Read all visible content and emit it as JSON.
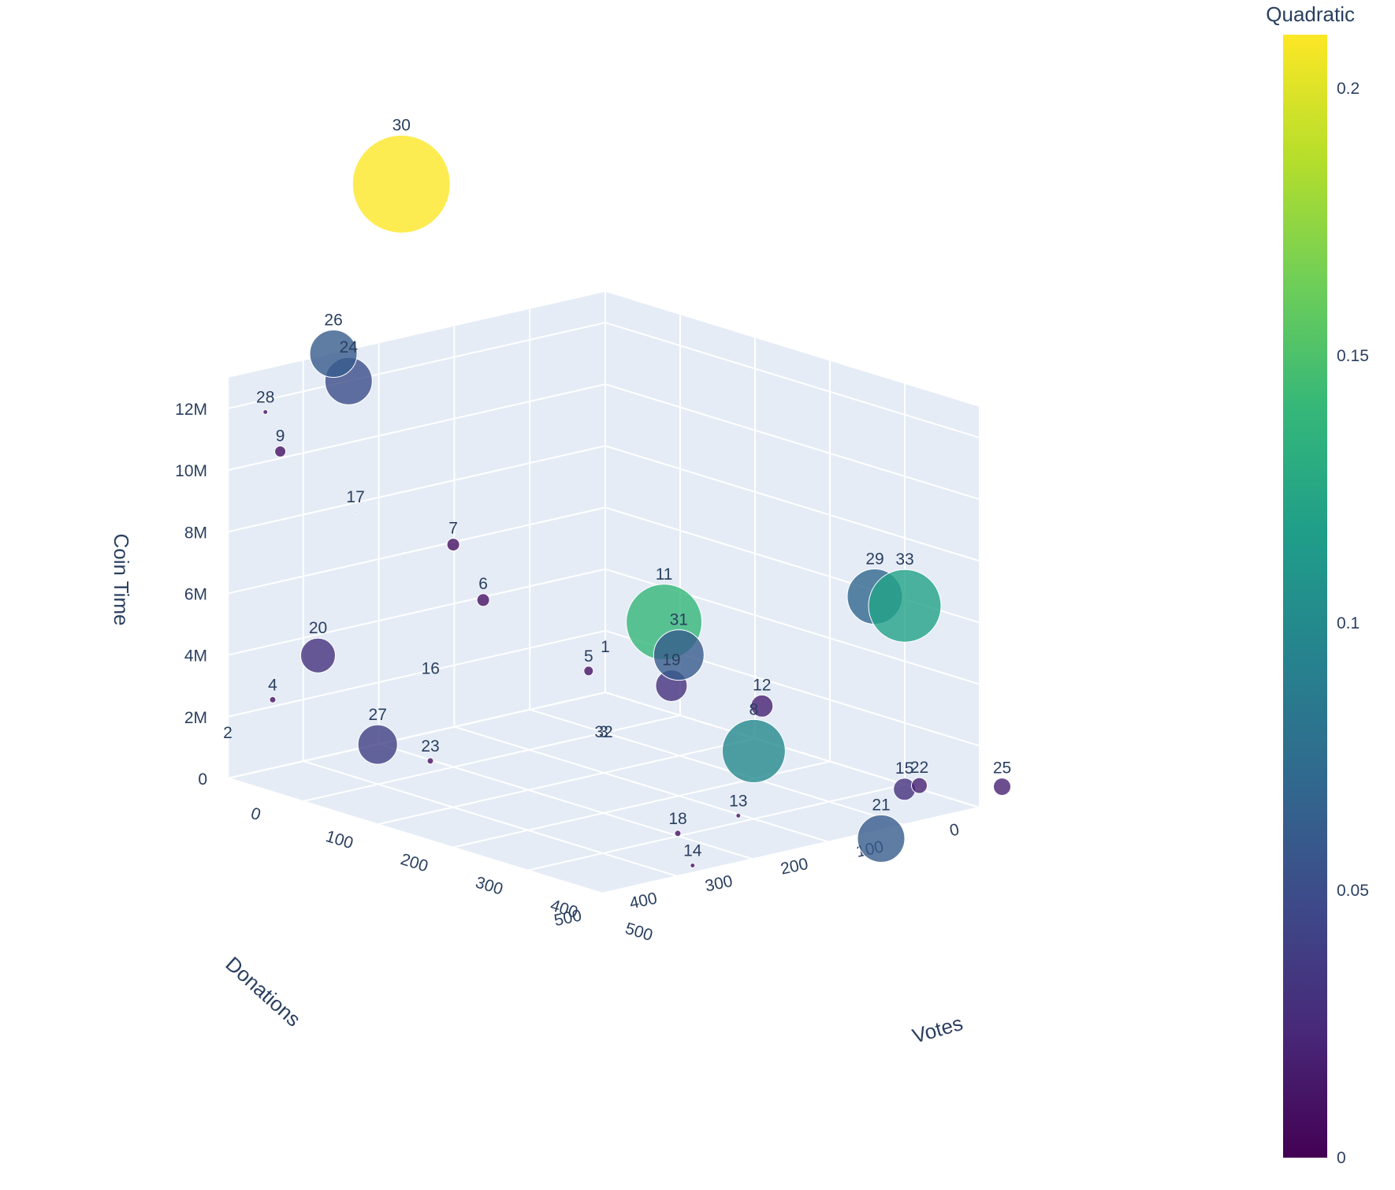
{
  "chart_data": {
    "type": "scatter3d",
    "axes": {
      "x": {
        "title": "Votes",
        "range": [
          0,
          500
        ],
        "ticks": [
          "0",
          "100",
          "200",
          "300",
          "400",
          "500"
        ]
      },
      "y": {
        "title": "Donations",
        "range": [
          0,
          500
        ],
        "ticks": [
          "0",
          "100",
          "200",
          "300",
          "400",
          "500"
        ]
      },
      "z": {
        "title": "Coin Time",
        "range": [
          0,
          13000000
        ],
        "ticks": [
          "0",
          "2M",
          "4M",
          "6M",
          "8M",
          "10M",
          "12M"
        ]
      }
    },
    "colorbar": {
      "title": "Quadratic",
      "colorscale": "Viridis",
      "range": [
        0,
        0.21
      ],
      "ticks": [
        "0",
        "0.05",
        "0.1",
        "0.15",
        "0.2"
      ],
      "colors": [
        "#440154",
        "#482878",
        "#3e4989",
        "#31688e",
        "#26828e",
        "#1f9e89",
        "#35b779",
        "#6ece58",
        "#b5de2b",
        "#fde725"
      ]
    },
    "points": [
      {
        "label": "1",
        "votes": 0,
        "donations": 0,
        "coin_time": 1000000,
        "quadratic": 0,
        "size": 0
      },
      {
        "label": "2",
        "votes": 0,
        "donations": 500,
        "coin_time": 1000000,
        "quadratic": 0,
        "size": 0
      },
      {
        "label": "3",
        "votes": 250,
        "donations": 250,
        "coin_time": 1500000,
        "quadratic": 0,
        "size": 0
      },
      {
        "label": "32",
        "votes": 250,
        "donations": 250,
        "coin_time": 1500000,
        "quadratic": 0,
        "size": 0
      },
      {
        "label": "4",
        "votes": 60,
        "donations": 500,
        "coin_time": 3000000,
        "quadratic": 0.01,
        "size": 4
      },
      {
        "label": "5",
        "votes": 260,
        "donations": 280,
        "coin_time": 4200000,
        "quadratic": 0.01,
        "size": 6
      },
      {
        "label": "6",
        "votes": 200,
        "donations": 360,
        "coin_time": 6500000,
        "quadratic": 0.01,
        "size": 8
      },
      {
        "label": "7",
        "votes": 160,
        "donations": 360,
        "coin_time": 8000000,
        "quadratic": 0.01,
        "size": 8
      },
      {
        "label": "8",
        "votes": 400,
        "donations": 200,
        "coin_time": 2200000,
        "quadratic": 0.1,
        "size": 40
      },
      {
        "label": "9",
        "votes": 60,
        "donations": 490,
        "coin_time": 11000000,
        "quadratic": 0.01,
        "size": 7
      },
      {
        "label": "11",
        "votes": 250,
        "donations": 170,
        "coin_time": 5100000,
        "quadratic": 0.14,
        "size": 48
      },
      {
        "label": "12",
        "votes": 300,
        "donations": 90,
        "coin_time": 2300000,
        "quadratic": 0.02,
        "size": 14
      },
      {
        "label": "13",
        "votes": 460,
        "donations": 280,
        "coin_time": 1000000,
        "quadratic": 0.01,
        "size": 3
      },
      {
        "label": "14",
        "votes": 520,
        "donations": 400,
        "coin_time": 500000,
        "quadratic": 0.01,
        "size": 3
      },
      {
        "label": "15",
        "votes": 450,
        "donations": 50,
        "coin_time": 500000,
        "quadratic": 0.03,
        "size": 14
      },
      {
        "label": "16",
        "votes": 170,
        "donations": 400,
        "coin_time": 3800000,
        "quadratic": 0,
        "size": 1
      },
      {
        "label": "17",
        "votes": 100,
        "donations": 430,
        "coin_time": 9000000,
        "quadratic": 0,
        "size": 1
      },
      {
        "label": "18",
        "votes": 470,
        "donations": 370,
        "coin_time": 1000000,
        "quadratic": 0.01,
        "size": 4
      },
      {
        "label": "19",
        "votes": 290,
        "donations": 200,
        "coin_time": 3500000,
        "quadratic": 0.03,
        "size": 20
      },
      {
        "label": "20",
        "votes": 60,
        "donations": 440,
        "coin_time": 4100000,
        "quadratic": 0.03,
        "size": 22
      },
      {
        "label": "21",
        "votes": 560,
        "donations": 190,
        "coin_time": 500000,
        "quadratic": 0.06,
        "size": 30
      },
      {
        "label": "22",
        "votes": 480,
        "donations": 60,
        "coin_time": 900000,
        "quadratic": 0.02,
        "size": 10
      },
      {
        "label": "23",
        "votes": 210,
        "donations": 440,
        "coin_time": 1800000,
        "quadratic": 0.01,
        "size": 4
      },
      {
        "label": "24",
        "votes": 0,
        "donations": 340,
        "coin_time": 12000000,
        "quadratic": 0.05,
        "size": 30
      },
      {
        "label": "25",
        "votes": 530,
        "donations": 0,
        "coin_time": 900000,
        "quadratic": 0.02,
        "size": 11
      },
      {
        "label": "26",
        "votes": 0,
        "donations": 360,
        "coin_time": 13000000,
        "quadratic": 0.06,
        "size": 30
      },
      {
        "label": "27",
        "votes": 170,
        "donations": 470,
        "coin_time": 2200000,
        "quadratic": 0.04,
        "size": 25
      },
      {
        "label": "28",
        "votes": 30,
        "donations": 480,
        "coin_time": 12000000,
        "quadratic": 0.01,
        "size": 3
      },
      {
        "label": "29",
        "votes": 360,
        "donations": 0,
        "coin_time": 5800000,
        "quadratic": 0.07,
        "size": 35
      },
      {
        "label": "30",
        "votes": 0,
        "donations": 270,
        "coin_time": 18000000,
        "quadratic": 0.21,
        "size": 62
      },
      {
        "label": "31",
        "votes": 310,
        "donations": 210,
        "coin_time": 4700000,
        "quadratic": 0.06,
        "size": 32
      },
      {
        "label": "33",
        "votes": 400,
        "donations": 0,
        "coin_time": 5800000,
        "quadratic": 0.12,
        "size": 46
      }
    ]
  }
}
